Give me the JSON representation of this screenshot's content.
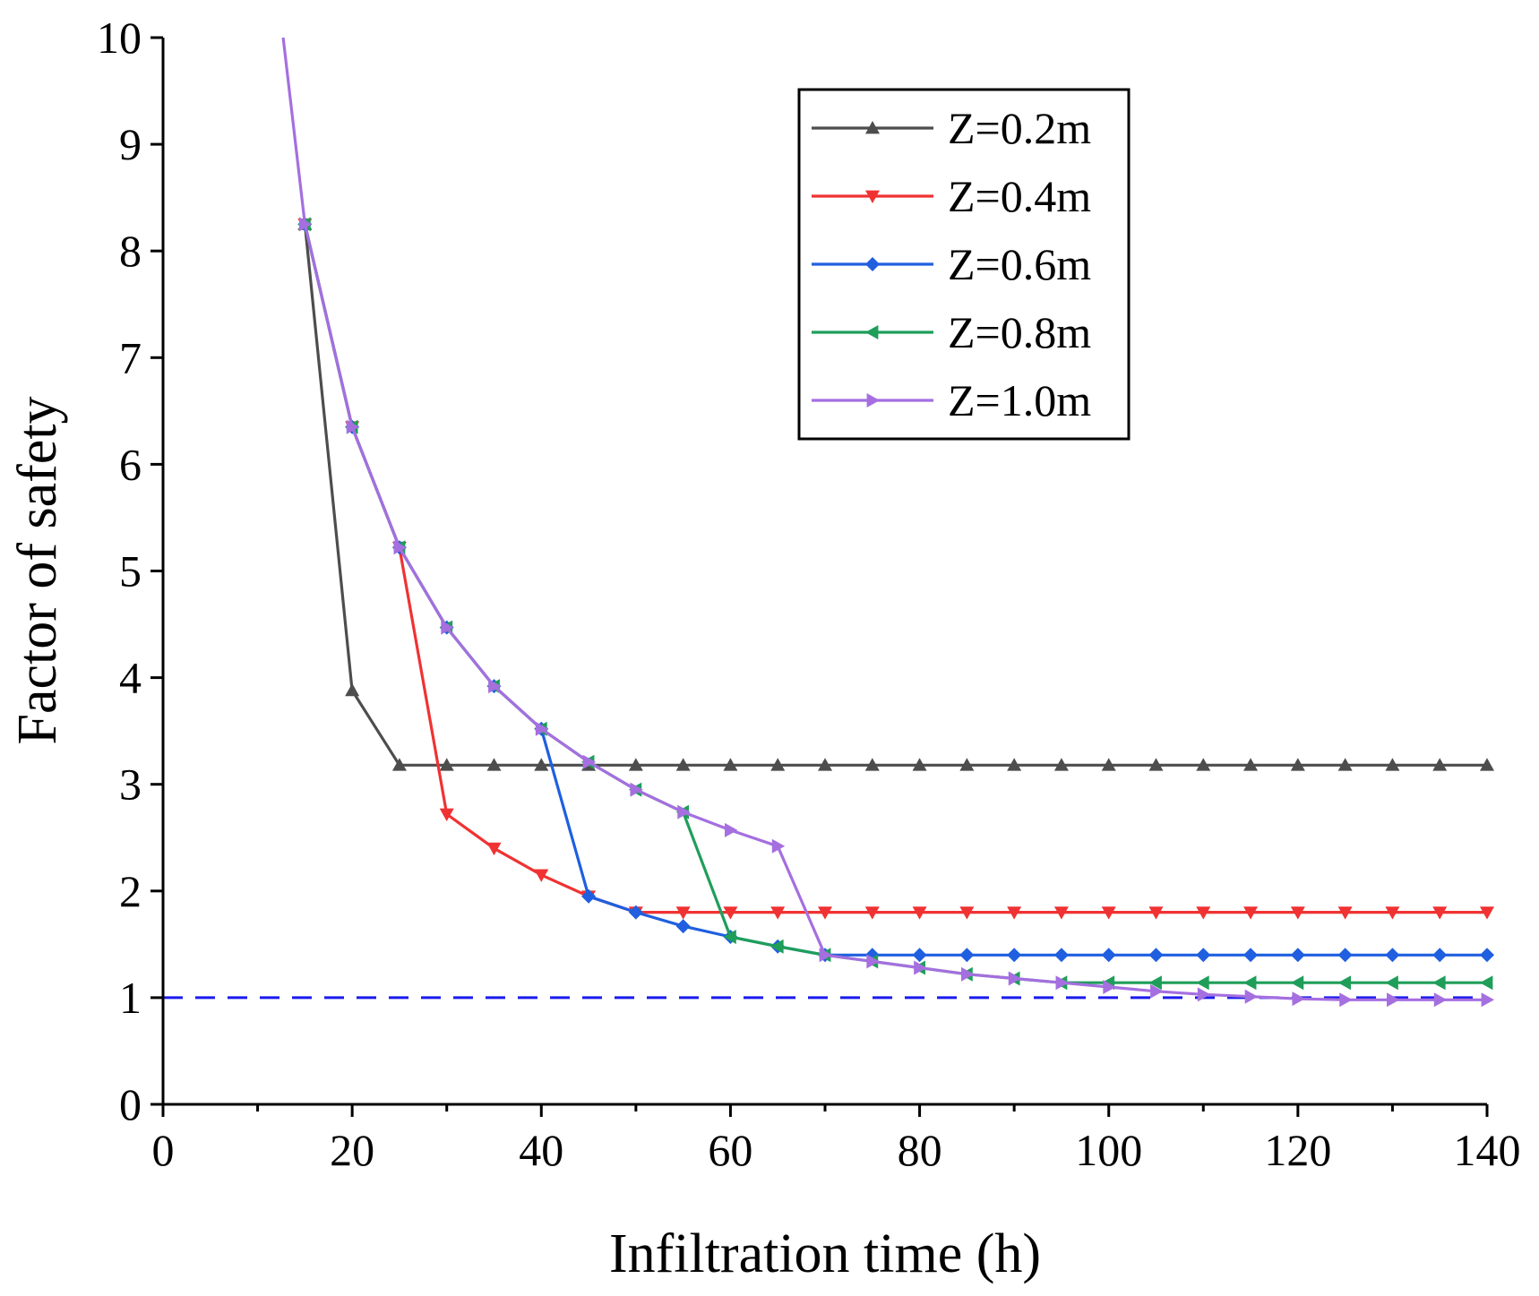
{
  "chart_data": {
    "type": "line",
    "xlabel": "Infiltration time (h)",
    "ylabel": "Factor of safety",
    "xlim": [
      0,
      140
    ],
    "ylim": [
      0,
      10
    ],
    "xticks": [
      0,
      20,
      40,
      60,
      80,
      100,
      120,
      140
    ],
    "xticks_minor": [
      10,
      30,
      50,
      70,
      90,
      110,
      130
    ],
    "yticks": [
      0,
      1,
      2,
      3,
      4,
      5,
      6,
      7,
      8,
      9,
      10
    ],
    "legend_position": "top-right",
    "reference_line": {
      "y": 1,
      "style": "dashed",
      "color": "#1a1aee"
    },
    "series": [
      {
        "name": "Z=0.2m",
        "color": "#4d4d4d",
        "marker": "triangle-up",
        "points": [
          [
            15,
            8.25
          ],
          [
            20,
            3.88
          ],
          [
            25,
            3.18
          ],
          [
            30,
            3.18
          ],
          [
            35,
            3.18
          ],
          [
            40,
            3.18
          ],
          [
            45,
            3.18
          ],
          [
            50,
            3.18
          ],
          [
            55,
            3.18
          ],
          [
            60,
            3.18
          ],
          [
            65,
            3.18
          ],
          [
            70,
            3.18
          ],
          [
            75,
            3.18
          ],
          [
            80,
            3.18
          ],
          [
            85,
            3.18
          ],
          [
            90,
            3.18
          ],
          [
            95,
            3.18
          ],
          [
            100,
            3.18
          ],
          [
            105,
            3.18
          ],
          [
            110,
            3.18
          ],
          [
            115,
            3.18
          ],
          [
            120,
            3.18
          ],
          [
            125,
            3.18
          ],
          [
            130,
            3.18
          ],
          [
            135,
            3.18
          ],
          [
            140,
            3.18
          ]
        ]
      },
      {
        "name": "Z=0.4m",
        "color": "#f03232",
        "marker": "triangle-down",
        "points": [
          [
            15,
            8.25
          ],
          [
            20,
            6.35
          ],
          [
            25,
            5.22
          ],
          [
            30,
            2.72
          ],
          [
            35,
            2.4
          ],
          [
            40,
            2.15
          ],
          [
            45,
            1.95
          ],
          [
            50,
            1.8
          ],
          [
            55,
            1.8
          ],
          [
            60,
            1.8
          ],
          [
            65,
            1.8
          ],
          [
            70,
            1.8
          ],
          [
            75,
            1.8
          ],
          [
            80,
            1.8
          ],
          [
            85,
            1.8
          ],
          [
            90,
            1.8
          ],
          [
            95,
            1.8
          ],
          [
            100,
            1.8
          ],
          [
            105,
            1.8
          ],
          [
            110,
            1.8
          ],
          [
            115,
            1.8
          ],
          [
            120,
            1.8
          ],
          [
            125,
            1.8
          ],
          [
            130,
            1.8
          ],
          [
            135,
            1.8
          ],
          [
            140,
            1.8
          ]
        ]
      },
      {
        "name": "Z=0.6m",
        "color": "#1f5fe0",
        "marker": "diamond",
        "points": [
          [
            15,
            8.25
          ],
          [
            20,
            6.35
          ],
          [
            25,
            5.22
          ],
          [
            30,
            4.47
          ],
          [
            35,
            3.92
          ],
          [
            40,
            3.52
          ],
          [
            45,
            1.95
          ],
          [
            50,
            1.8
          ],
          [
            55,
            1.67
          ],
          [
            60,
            1.57
          ],
          [
            65,
            1.48
          ],
          [
            70,
            1.4
          ],
          [
            75,
            1.4
          ],
          [
            80,
            1.4
          ],
          [
            85,
            1.4
          ],
          [
            90,
            1.4
          ],
          [
            95,
            1.4
          ],
          [
            100,
            1.4
          ],
          [
            105,
            1.4
          ],
          [
            110,
            1.4
          ],
          [
            115,
            1.4
          ],
          [
            120,
            1.4
          ],
          [
            125,
            1.4
          ],
          [
            130,
            1.4
          ],
          [
            135,
            1.4
          ],
          [
            140,
            1.4
          ]
        ]
      },
      {
        "name": "Z=0.8m",
        "color": "#1f9e5a",
        "marker": "triangle-left",
        "points": [
          [
            15,
            8.25
          ],
          [
            20,
            6.35
          ],
          [
            25,
            5.22
          ],
          [
            30,
            4.47
          ],
          [
            35,
            3.92
          ],
          [
            40,
            3.52
          ],
          [
            45,
            3.21
          ],
          [
            50,
            2.95
          ],
          [
            55,
            2.74
          ],
          [
            60,
            1.57
          ],
          [
            65,
            1.48
          ],
          [
            70,
            1.4
          ],
          [
            75,
            1.34
          ],
          [
            80,
            1.28
          ],
          [
            85,
            1.22
          ],
          [
            90,
            1.18
          ],
          [
            95,
            1.14
          ],
          [
            100,
            1.14
          ],
          [
            105,
            1.14
          ],
          [
            110,
            1.14
          ],
          [
            115,
            1.14
          ],
          [
            120,
            1.14
          ],
          [
            125,
            1.14
          ],
          [
            130,
            1.14
          ],
          [
            135,
            1.14
          ],
          [
            140,
            1.14
          ]
        ]
      },
      {
        "name": "Z=1.0m",
        "color": "#a56fe0",
        "marker": "triangle-right",
        "points": [
          [
            12.7,
            10
          ],
          [
            15,
            8.25
          ],
          [
            20,
            6.35
          ],
          [
            25,
            5.22
          ],
          [
            30,
            4.47
          ],
          [
            35,
            3.92
          ],
          [
            40,
            3.52
          ],
          [
            45,
            3.21
          ],
          [
            50,
            2.95
          ],
          [
            55,
            2.74
          ],
          [
            60,
            2.57
          ],
          [
            65,
            2.42
          ],
          [
            70,
            1.4
          ],
          [
            75,
            1.34
          ],
          [
            80,
            1.28
          ],
          [
            85,
            1.22
          ],
          [
            90,
            1.18
          ],
          [
            95,
            1.14
          ],
          [
            100,
            1.1
          ],
          [
            105,
            1.06
          ],
          [
            110,
            1.03
          ],
          [
            115,
            1.01
          ],
          [
            120,
            0.99
          ],
          [
            125,
            0.98
          ],
          [
            130,
            0.98
          ],
          [
            135,
            0.98
          ],
          [
            140,
            0.98
          ]
        ]
      }
    ]
  }
}
